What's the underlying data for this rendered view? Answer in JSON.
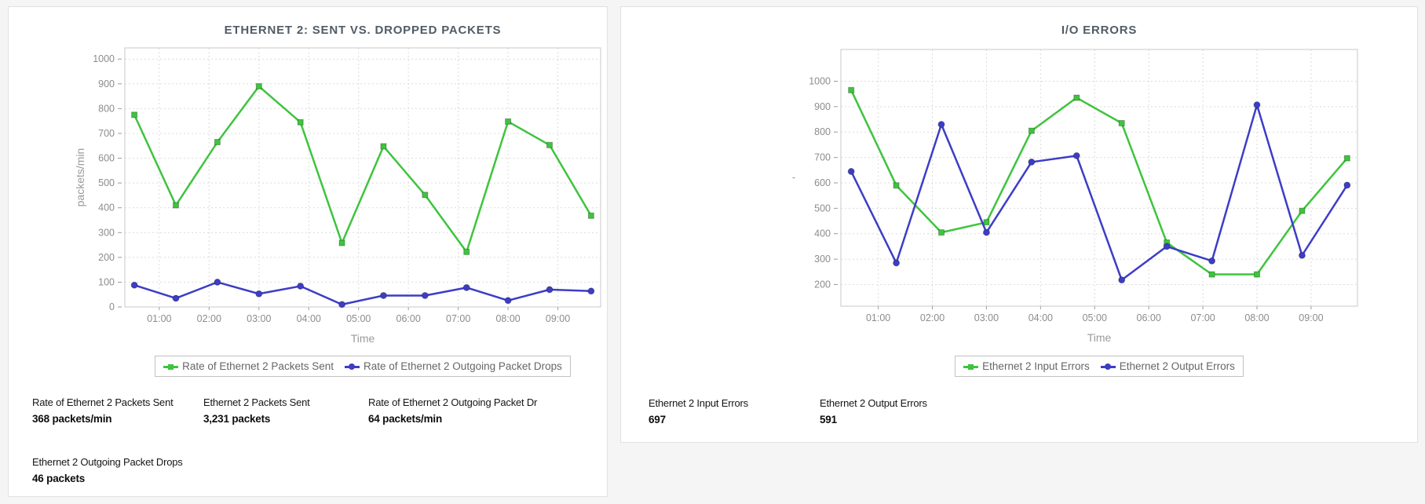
{
  "chart_data": [
    {
      "type": "line",
      "title": "ETHERNET 2: SENT VS. DROPPED PACKETS",
      "xlabel": "Time",
      "ylabel": "packets/min",
      "grid": true,
      "legend_position": "bottom",
      "x": [
        "00:30",
        "01:20",
        "02:10",
        "03:00",
        "03:50",
        "04:40",
        "05:30",
        "06:20",
        "07:10",
        "08:00",
        "08:50",
        "09:40"
      ],
      "x_tick_labels": [
        "01:00",
        "02:00",
        "03:00",
        "04:00",
        "05:00",
        "06:00",
        "07:00",
        "08:00",
        "09:00"
      ],
      "y_ticks": [
        0,
        100,
        200,
        300,
        400,
        500,
        600,
        700,
        800,
        900,
        1000
      ],
      "ylim": [
        0,
        1000
      ],
      "series": [
        {
          "name": "Rate of Ethernet 2 Packets Sent",
          "color": "#3ec43e",
          "marker": "square",
          "values": [
            775,
            410,
            665,
            890,
            745,
            258,
            648,
            452,
            222,
            748,
            653,
            368
          ]
        },
        {
          "name": "Rate of Ethernet 2 Outgoing Packet Drops",
          "color": "#3d3dc6",
          "marker": "circle",
          "values": [
            88,
            35,
            100,
            53,
            84,
            10,
            46,
            46,
            78,
            26,
            70,
            64
          ]
        }
      ]
    },
    {
      "type": "line",
      "title": "I/O ERRORS",
      "xlabel": "Time",
      "ylabel": "'",
      "grid": true,
      "legend_position": "bottom",
      "x": [
        "00:30",
        "01:20",
        "02:10",
        "03:00",
        "03:50",
        "04:40",
        "05:30",
        "06:20",
        "07:10",
        "08:00",
        "08:50",
        "09:40"
      ],
      "x_tick_labels": [
        "01:00",
        "02:00",
        "03:00",
        "04:00",
        "05:00",
        "06:00",
        "07:00",
        "08:00",
        "09:00"
      ],
      "y_ticks": [
        200,
        300,
        400,
        500,
        600,
        700,
        800,
        900,
        1000
      ],
      "ylim": [
        200,
        1000
      ],
      "series": [
        {
          "name": "Ethernet 2 Input Errors",
          "color": "#3ec43e",
          "marker": "square",
          "values": [
            965,
            590,
            405,
            445,
            805,
            935,
            835,
            365,
            240,
            240,
            490,
            697
          ]
        },
        {
          "name": "Ethernet 2 Output Errors",
          "color": "#3d3dc6",
          "marker": "circle",
          "values": [
            645,
            285,
            830,
            405,
            682,
            707,
            218,
            350,
            293,
            907,
            315,
            591
          ]
        }
      ]
    }
  ],
  "panels": [
    {
      "stats": [
        {
          "label": "Rate of Ethernet 2 Packets Sent",
          "value": "368 packets/min"
        },
        {
          "label": "Ethernet 2 Packets Sent",
          "value": "3,231 packets"
        },
        {
          "label": "Rate of Ethernet 2 Outgoing Packet Dr",
          "value": "64 packets/min"
        },
        {
          "label": "Ethernet 2 Outgoing Packet Drops",
          "value": "46 packets"
        }
      ]
    },
    {
      "stats": [
        {
          "label": "Ethernet 2 Input Errors",
          "value": "697"
        },
        {
          "label": "Ethernet 2 Output Errors",
          "value": "591"
        }
      ]
    }
  ]
}
